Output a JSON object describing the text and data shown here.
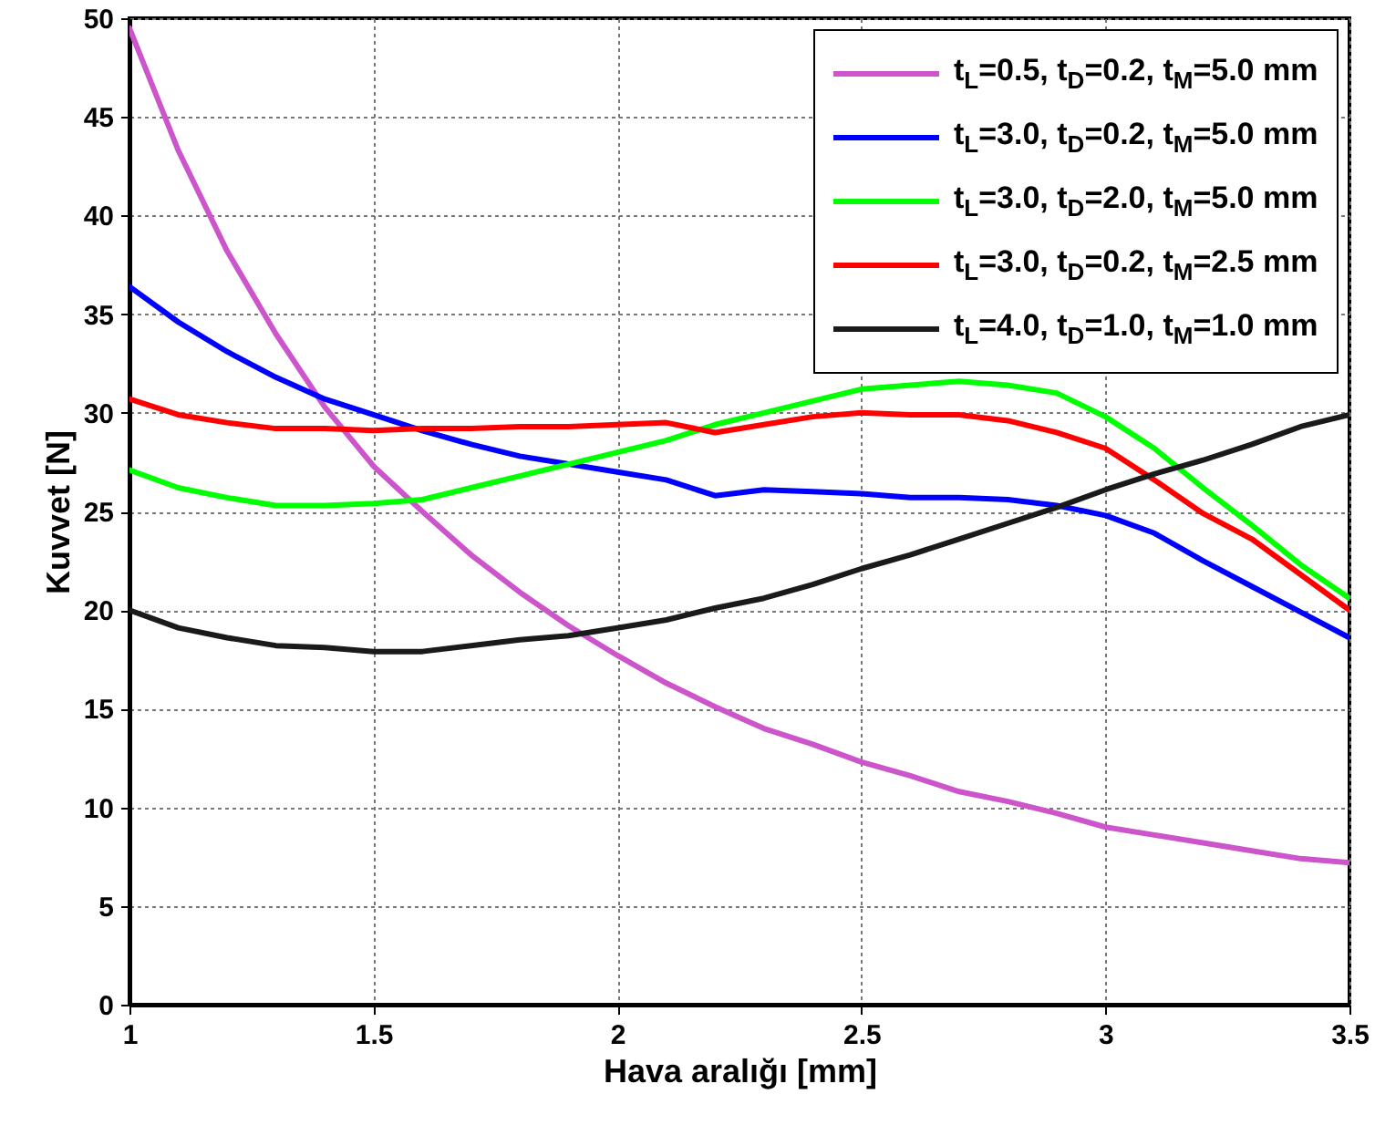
{
  "chart_data": {
    "type": "line",
    "xlabel": "Hava aralığı [mm]",
    "ylabel": "Kuvvet [N]",
    "x": [
      1.0,
      1.1,
      1.2,
      1.3,
      1.4,
      1.5,
      1.6,
      1.7,
      1.8,
      1.9,
      2.0,
      2.1,
      2.2,
      2.3,
      2.4,
      2.5,
      2.6,
      2.7,
      2.8,
      2.9,
      3.0,
      3.1,
      3.2,
      3.3,
      3.4,
      3.5
    ],
    "series": [
      {
        "name": "t$_{L}$=0.5, t$_{D}$=0.2, t$_{M}$=5.0 mm",
        "color": "#cc55cc",
        "values": [
          49.5,
          43.3,
          38.2,
          34,
          30.3,
          27.3,
          25,
          22.8,
          20.9,
          19.2,
          17.7,
          16.3,
          15.1,
          14,
          13.2,
          12.3,
          11.6,
          10.8,
          10.3,
          9.7,
          9.0,
          8.6,
          8.2,
          7.8,
          7.4,
          7.2
        ]
      },
      {
        "name": "t$_{L}$=3.0, t$_{D}$=0.2, t$_{M}$=5.0 mm",
        "color": "#0000ff",
        "values": [
          36.4,
          34.6,
          33.1,
          31.8,
          30.7,
          29.9,
          29.1,
          28.4,
          27.8,
          27.4,
          27.0,
          26.6,
          25.8,
          26.1,
          26.0,
          25.9,
          25.7,
          25.7,
          25.6,
          25.3,
          24.8,
          23.9,
          22.5,
          21.2,
          19.9,
          18.6
        ]
      },
      {
        "name": "t$_{L}$=3.0, t$_{D}$=2.0, t$_{M}$=5.0 mm",
        "color": "#00ff00",
        "values": [
          27.1,
          26.2,
          25.7,
          25.3,
          25.3,
          25.4,
          25.6,
          26.2,
          26.8,
          27.4,
          28.0,
          28.6,
          29.4,
          30.0,
          30.6,
          31.2,
          31.4,
          31.6,
          31.4,
          31.0,
          29.8,
          28.2,
          26.2,
          24.3,
          22.3,
          20.6
        ]
      },
      {
        "name": "t$_{L}$=3.0, t$_{D}$=0.2, t$_{M}$=2.5 mm",
        "color": "#ff0000",
        "values": [
          30.7,
          29.9,
          29.5,
          29.2,
          29.2,
          29.1,
          29.2,
          29.2,
          29.3,
          29.3,
          29.4,
          29.5,
          29.0,
          29.4,
          29.8,
          30.0,
          29.9,
          29.9,
          29.6,
          29.0,
          28.2,
          26.6,
          24.9,
          23.6,
          21.8,
          20.0
        ]
      },
      {
        "name": "t$_{L}$=4.0, t$_{D}$=1.0, t$_{M}$=1.0 mm",
        "color": "#1a1a1a",
        "values": [
          20.0,
          19.1,
          18.6,
          18.2,
          18.1,
          17.9,
          17.9,
          18.2,
          18.5,
          18.7,
          19.1,
          19.5,
          20.1,
          20.6,
          21.3,
          22.1,
          22.8,
          23.6,
          24.4,
          25.2,
          26.1,
          26.9,
          27.6,
          28.4,
          29.3,
          29.9
        ]
      }
    ],
    "xlim": [
      1,
      3.5
    ],
    "xticks": [
      {
        "value": 1,
        "label": "1"
      },
      1.5,
      {
        "value": 2,
        "label": "2"
      },
      2.5,
      {
        "value": 3,
        "label": "3"
      },
      3.5
    ],
    "ylim": [
      0,
      50
    ],
    "yticks": [
      0,
      5,
      10,
      15,
      20,
      25,
      30,
      35,
      40,
      45,
      50
    ],
    "grid": true,
    "legend": "top right",
    "marker": "none",
    "line_style": "solid"
  }
}
